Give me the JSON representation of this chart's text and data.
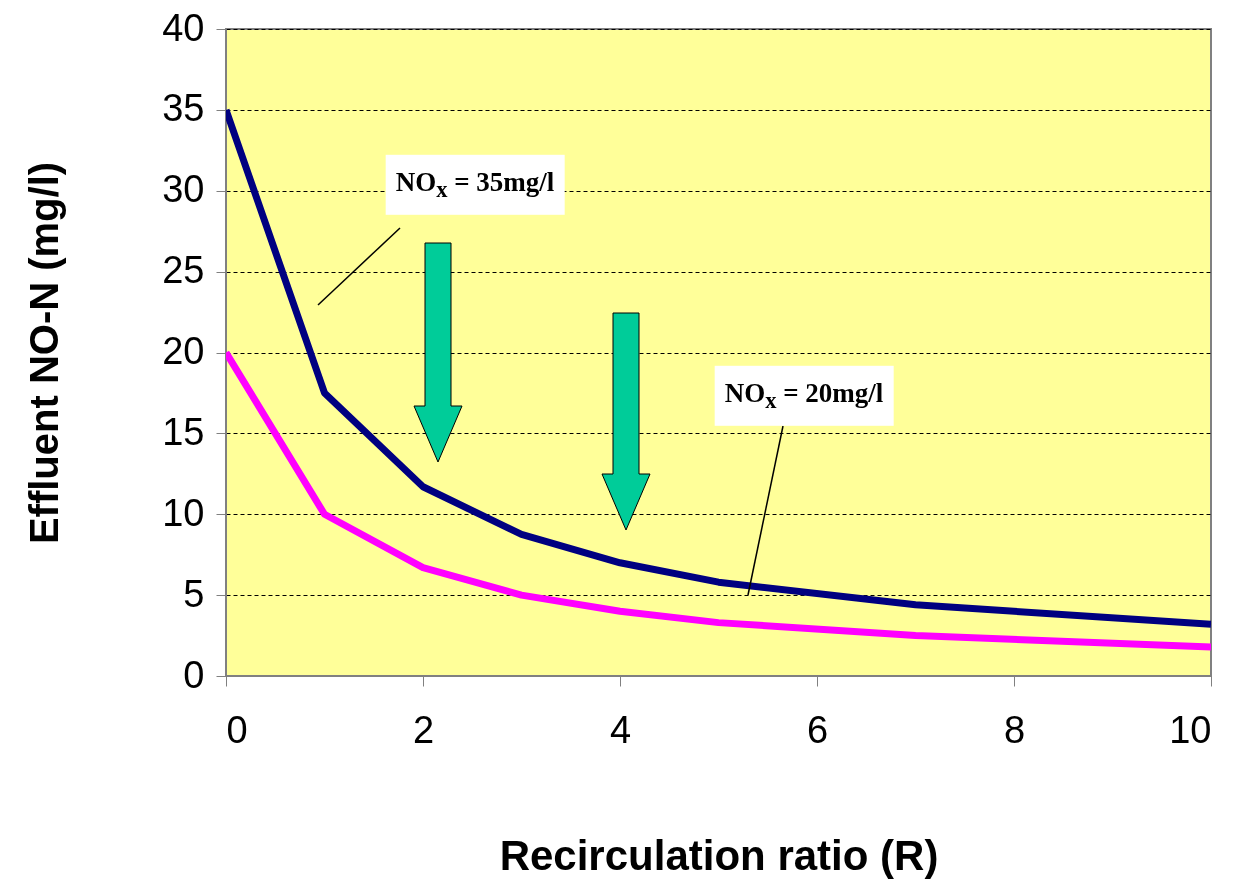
{
  "chart_data": {
    "type": "line",
    "xlabel": "Recirculation ratio (R)",
    "ylabel": "Effluent NO-N (mg/l)",
    "x": [
      0,
      1,
      2,
      3,
      4,
      5,
      7,
      10
    ],
    "series": [
      {
        "color": "#000080",
        "values": [
          35,
          17.5,
          11.7,
          8.75,
          7,
          5.8,
          4.4,
          3.2
        ]
      },
      {
        "color": "#ff00ff",
        "values": [
          20,
          10,
          6.7,
          5,
          4,
          3.3,
          2.5,
          1.8
        ]
      }
    ],
    "xlim": [
      0,
      10
    ],
    "xticks": [
      0,
      2,
      4,
      6,
      8,
      10
    ],
    "ylim": [
      0,
      40
    ],
    "yticks": [
      0,
      5,
      10,
      15,
      20,
      25,
      30,
      35,
      40
    ],
    "grid": "y",
    "legend": false,
    "annotations": [
      "NO$_{x}$ = 35mg/l",
      "NO$_{x}$ = 20mg/l"
    ]
  }
}
